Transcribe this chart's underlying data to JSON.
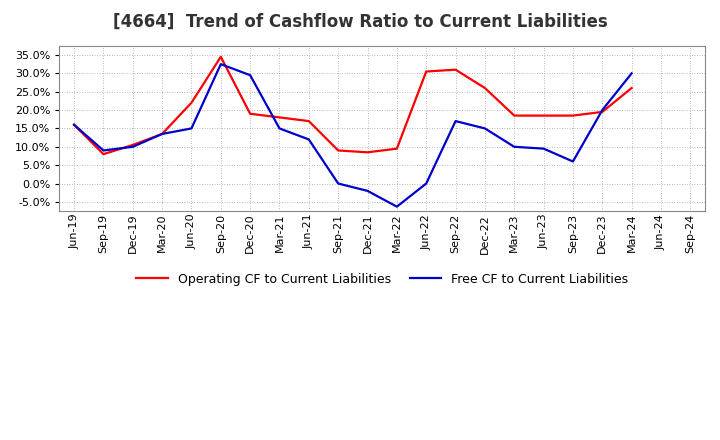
{
  "title": "[4664]  Trend of Cashflow Ratio to Current Liabilities",
  "x_labels": [
    "Jun-19",
    "Sep-19",
    "Dec-19",
    "Mar-20",
    "Jun-20",
    "Sep-20",
    "Dec-20",
    "Mar-21",
    "Jun-21",
    "Sep-21",
    "Dec-21",
    "Mar-22",
    "Jun-22",
    "Sep-22",
    "Dec-22",
    "Mar-23",
    "Jun-23",
    "Sep-23",
    "Dec-23",
    "Mar-24",
    "Jun-24",
    "Sep-24"
  ],
  "op_cf": [
    0.16,
    0.08,
    0.105,
    0.135,
    0.22,
    0.345,
    0.19,
    0.18,
    0.17,
    0.09,
    0.085,
    0.095,
    0.305,
    0.31,
    0.26,
    0.185,
    0.185,
    0.185,
    0.195,
    0.26,
    null,
    null
  ],
  "fr_cf": [
    0.16,
    0.09,
    0.1,
    0.135,
    0.15,
    0.325,
    0.295,
    0.15,
    0.12,
    0.0,
    -0.02,
    -0.063,
    0.0,
    0.17,
    0.15,
    0.1,
    0.095,
    0.06,
    0.2,
    0.3,
    null,
    null
  ],
  "ylim": [
    -0.075,
    0.375
  ],
  "yticks": [
    -0.05,
    0.0,
    0.05,
    0.1,
    0.15,
    0.2,
    0.25,
    0.3,
    0.35
  ],
  "operating_color": "#FF0000",
  "free_color": "#0000CC",
  "background_color": "#FFFFFF",
  "grid_color": "#999999",
  "legend_operating": "Operating CF to Current Liabilities",
  "legend_free": "Free CF to Current Liabilities",
  "title_fontsize": 12,
  "tick_fontsize": 8,
  "legend_fontsize": 9,
  "line_width": 1.6
}
